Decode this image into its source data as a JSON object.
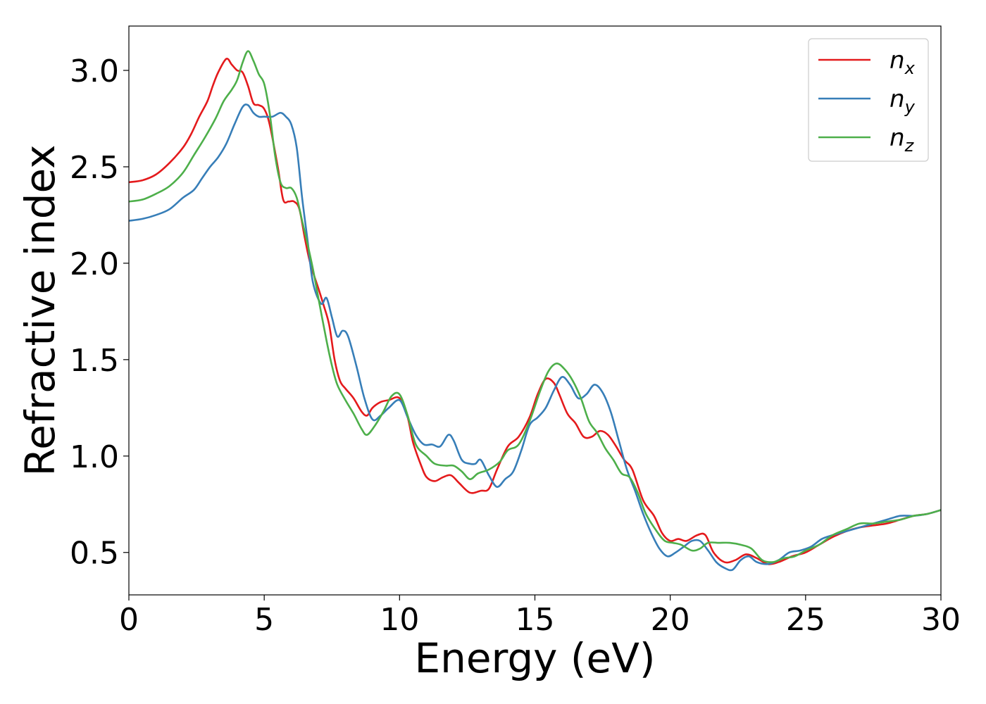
{
  "chart_data": {
    "type": "line",
    "title": "",
    "xlabel": "Energy (eV)",
    "ylabel": "Refractive index",
    "xlim": [
      0,
      30
    ],
    "ylim": [
      0.28,
      3.23
    ],
    "xticks": [
      0,
      5,
      10,
      15,
      20,
      25,
      30
    ],
    "yticks": [
      0.5,
      1.0,
      1.5,
      2.0,
      2.5,
      3.0
    ],
    "grid": false,
    "legend_position": "top-right",
    "series": [
      {
        "name": "n",
        "subscript": "x",
        "color": "#e41a1c",
        "points": [
          [
            0,
            2.42
          ],
          [
            0.5,
            2.43
          ],
          [
            1,
            2.46
          ],
          [
            1.5,
            2.52
          ],
          [
            2,
            2.6
          ],
          [
            2.3,
            2.67
          ],
          [
            2.6,
            2.76
          ],
          [
            2.9,
            2.84
          ],
          [
            3.1,
            2.92
          ],
          [
            3.3,
            2.99
          ],
          [
            3.6,
            3.06
          ],
          [
            3.8,
            3.03
          ],
          [
            4,
            3.0
          ],
          [
            4.2,
            2.99
          ],
          [
            4.4,
            2.92
          ],
          [
            4.6,
            2.83
          ],
          [
            4.8,
            2.82
          ],
          [
            5,
            2.8
          ],
          [
            5.2,
            2.72
          ],
          [
            5.5,
            2.5
          ],
          [
            5.7,
            2.33
          ],
          [
            5.9,
            2.32
          ],
          [
            6.1,
            2.32
          ],
          [
            6.3,
            2.28
          ],
          [
            6.5,
            2.13
          ],
          [
            6.7,
            2.0
          ],
          [
            7,
            1.87
          ],
          [
            7.2,
            1.78
          ],
          [
            7.4,
            1.68
          ],
          [
            7.6,
            1.5
          ],
          [
            7.8,
            1.39
          ],
          [
            8,
            1.35
          ],
          [
            8.3,
            1.3
          ],
          [
            8.6,
            1.23
          ],
          [
            8.8,
            1.21
          ],
          [
            9,
            1.25
          ],
          [
            9.3,
            1.28
          ],
          [
            9.6,
            1.29
          ],
          [
            10,
            1.3
          ],
          [
            10.3,
            1.2
          ],
          [
            10.5,
            1.07
          ],
          [
            10.8,
            0.95
          ],
          [
            11,
            0.89
          ],
          [
            11.3,
            0.87
          ],
          [
            11.6,
            0.89
          ],
          [
            11.9,
            0.9
          ],
          [
            12.2,
            0.86
          ],
          [
            12.6,
            0.81
          ],
          [
            13,
            0.82
          ],
          [
            13.3,
            0.83
          ],
          [
            13.6,
            0.93
          ],
          [
            14,
            1.05
          ],
          [
            14.4,
            1.1
          ],
          [
            14.8,
            1.2
          ],
          [
            15.1,
            1.32
          ],
          [
            15.4,
            1.4
          ],
          [
            15.7,
            1.38
          ],
          [
            15.9,
            1.32
          ],
          [
            16.2,
            1.22
          ],
          [
            16.5,
            1.17
          ],
          [
            16.8,
            1.1
          ],
          [
            17.1,
            1.1
          ],
          [
            17.4,
            1.13
          ],
          [
            17.7,
            1.11
          ],
          [
            18,
            1.05
          ],
          [
            18.3,
            0.98
          ],
          [
            18.6,
            0.93
          ],
          [
            19,
            0.77
          ],
          [
            19.4,
            0.69
          ],
          [
            19.7,
            0.6
          ],
          [
            20,
            0.56
          ],
          [
            20.3,
            0.57
          ],
          [
            20.6,
            0.56
          ],
          [
            21,
            0.59
          ],
          [
            21.3,
            0.59
          ],
          [
            21.6,
            0.5
          ],
          [
            22,
            0.45
          ],
          [
            22.4,
            0.46
          ],
          [
            22.8,
            0.49
          ],
          [
            23.2,
            0.47
          ],
          [
            23.6,
            0.44
          ],
          [
            24,
            0.45
          ],
          [
            24.5,
            0.48
          ],
          [
            25,
            0.5
          ],
          [
            25.5,
            0.54
          ],
          [
            26,
            0.58
          ],
          [
            26.5,
            0.61
          ],
          [
            27,
            0.63
          ],
          [
            27.5,
            0.64
          ],
          [
            28,
            0.65
          ],
          [
            28.5,
            0.67
          ],
          [
            29,
            0.69
          ],
          [
            29.5,
            0.7
          ],
          [
            30,
            0.72
          ]
        ]
      },
      {
        "name": "n",
        "subscript": "y",
        "color": "#377eb8",
        "points": [
          [
            0,
            2.22
          ],
          [
            0.5,
            2.23
          ],
          [
            1,
            2.25
          ],
          [
            1.5,
            2.28
          ],
          [
            2,
            2.34
          ],
          [
            2.4,
            2.38
          ],
          [
            2.7,
            2.44
          ],
          [
            3,
            2.5
          ],
          [
            3.3,
            2.55
          ],
          [
            3.6,
            2.62
          ],
          [
            3.9,
            2.72
          ],
          [
            4.2,
            2.81
          ],
          [
            4.4,
            2.82
          ],
          [
            4.6,
            2.78
          ],
          [
            4.8,
            2.76
          ],
          [
            5,
            2.76
          ],
          [
            5.3,
            2.76
          ],
          [
            5.6,
            2.78
          ],
          [
            5.8,
            2.76
          ],
          [
            6,
            2.72
          ],
          [
            6.2,
            2.6
          ],
          [
            6.4,
            2.34
          ],
          [
            6.6,
            2.12
          ],
          [
            6.8,
            1.9
          ],
          [
            7.1,
            1.79
          ],
          [
            7.3,
            1.82
          ],
          [
            7.5,
            1.72
          ],
          [
            7.7,
            1.62
          ],
          [
            7.9,
            1.65
          ],
          [
            8.1,
            1.62
          ],
          [
            8.4,
            1.47
          ],
          [
            8.7,
            1.3
          ],
          [
            9,
            1.19
          ],
          [
            9.3,
            1.21
          ],
          [
            9.6,
            1.25
          ],
          [
            10,
            1.29
          ],
          [
            10.3,
            1.2
          ],
          [
            10.6,
            1.11
          ],
          [
            10.9,
            1.06
          ],
          [
            11.2,
            1.06
          ],
          [
            11.5,
            1.05
          ],
          [
            11.8,
            1.11
          ],
          [
            12,
            1.08
          ],
          [
            12.3,
            0.98
          ],
          [
            12.6,
            0.96
          ],
          [
            12.8,
            0.96
          ],
          [
            13,
            0.98
          ],
          [
            13.3,
            0.9
          ],
          [
            13.6,
            0.84
          ],
          [
            13.9,
            0.88
          ],
          [
            14.2,
            0.92
          ],
          [
            14.5,
            1.03
          ],
          [
            14.8,
            1.16
          ],
          [
            15.1,
            1.2
          ],
          [
            15.4,
            1.25
          ],
          [
            15.7,
            1.34
          ],
          [
            16,
            1.41
          ],
          [
            16.3,
            1.37
          ],
          [
            16.6,
            1.3
          ],
          [
            16.9,
            1.32
          ],
          [
            17.2,
            1.37
          ],
          [
            17.5,
            1.33
          ],
          [
            17.8,
            1.23
          ],
          [
            18.1,
            1.08
          ],
          [
            18.4,
            0.93
          ],
          [
            18.7,
            0.82
          ],
          [
            19,
            0.7
          ],
          [
            19.3,
            0.6
          ],
          [
            19.6,
            0.52
          ],
          [
            19.9,
            0.48
          ],
          [
            20.2,
            0.5
          ],
          [
            20.5,
            0.53
          ],
          [
            20.8,
            0.56
          ],
          [
            21.1,
            0.56
          ],
          [
            21.4,
            0.51
          ],
          [
            21.7,
            0.45
          ],
          [
            22,
            0.42
          ],
          [
            22.3,
            0.41
          ],
          [
            22.6,
            0.46
          ],
          [
            22.9,
            0.48
          ],
          [
            23.2,
            0.45
          ],
          [
            23.6,
            0.44
          ],
          [
            24,
            0.46
          ],
          [
            24.4,
            0.5
          ],
          [
            24.8,
            0.51
          ],
          [
            25.2,
            0.53
          ],
          [
            25.6,
            0.57
          ],
          [
            26,
            0.59
          ],
          [
            26.5,
            0.61
          ],
          [
            27,
            0.63
          ],
          [
            27.5,
            0.65
          ],
          [
            28,
            0.67
          ],
          [
            28.5,
            0.69
          ],
          [
            29,
            0.69
          ],
          [
            29.5,
            0.7
          ],
          [
            30,
            0.72
          ]
        ]
      },
      {
        "name": "n",
        "subscript": "z",
        "color": "#4daf4a",
        "points": [
          [
            0,
            2.32
          ],
          [
            0.5,
            2.33
          ],
          [
            1,
            2.36
          ],
          [
            1.5,
            2.4
          ],
          [
            2,
            2.47
          ],
          [
            2.4,
            2.56
          ],
          [
            2.8,
            2.65
          ],
          [
            3.2,
            2.75
          ],
          [
            3.5,
            2.84
          ],
          [
            3.8,
            2.9
          ],
          [
            4,
            2.95
          ],
          [
            4.2,
            3.04
          ],
          [
            4.4,
            3.1
          ],
          [
            4.6,
            3.05
          ],
          [
            4.8,
            2.98
          ],
          [
            5,
            2.93
          ],
          [
            5.2,
            2.78
          ],
          [
            5.4,
            2.56
          ],
          [
            5.6,
            2.42
          ],
          [
            5.8,
            2.39
          ],
          [
            6,
            2.39
          ],
          [
            6.2,
            2.34
          ],
          [
            6.4,
            2.22
          ],
          [
            6.6,
            2.1
          ],
          [
            6.8,
            1.97
          ],
          [
            7,
            1.82
          ],
          [
            7.3,
            1.6
          ],
          [
            7.5,
            1.47
          ],
          [
            7.7,
            1.37
          ],
          [
            8,
            1.29
          ],
          [
            8.3,
            1.22
          ],
          [
            8.6,
            1.14
          ],
          [
            8.8,
            1.11
          ],
          [
            9.1,
            1.16
          ],
          [
            9.4,
            1.23
          ],
          [
            9.7,
            1.31
          ],
          [
            10,
            1.32
          ],
          [
            10.3,
            1.21
          ],
          [
            10.6,
            1.06
          ],
          [
            11,
            1.0
          ],
          [
            11.3,
            0.96
          ],
          [
            11.7,
            0.95
          ],
          [
            12,
            0.95
          ],
          [
            12.3,
            0.92
          ],
          [
            12.6,
            0.88
          ],
          [
            12.9,
            0.91
          ],
          [
            13.3,
            0.93
          ],
          [
            13.7,
            0.97
          ],
          [
            14,
            1.03
          ],
          [
            14.4,
            1.06
          ],
          [
            14.8,
            1.18
          ],
          [
            15.2,
            1.34
          ],
          [
            15.5,
            1.44
          ],
          [
            15.8,
            1.48
          ],
          [
            16.1,
            1.45
          ],
          [
            16.4,
            1.39
          ],
          [
            16.7,
            1.3
          ],
          [
            17,
            1.18
          ],
          [
            17.3,
            1.12
          ],
          [
            17.6,
            1.04
          ],
          [
            17.9,
            0.98
          ],
          [
            18.2,
            0.91
          ],
          [
            18.5,
            0.89
          ],
          [
            18.8,
            0.81
          ],
          [
            19.1,
            0.7
          ],
          [
            19.5,
            0.61
          ],
          [
            19.8,
            0.56
          ],
          [
            20.1,
            0.55
          ],
          [
            20.4,
            0.54
          ],
          [
            20.8,
            0.51
          ],
          [
            21.1,
            0.52
          ],
          [
            21.4,
            0.55
          ],
          [
            21.8,
            0.55
          ],
          [
            22.2,
            0.55
          ],
          [
            22.6,
            0.54
          ],
          [
            23,
            0.52
          ],
          [
            23.4,
            0.46
          ],
          [
            23.8,
            0.45
          ],
          [
            24.2,
            0.47
          ],
          [
            24.6,
            0.48
          ],
          [
            25,
            0.51
          ],
          [
            25.5,
            0.54
          ],
          [
            26,
            0.59
          ],
          [
            26.5,
            0.62
          ],
          [
            27,
            0.65
          ],
          [
            27.5,
            0.65
          ],
          [
            28,
            0.66
          ],
          [
            28.5,
            0.67
          ],
          [
            29,
            0.69
          ],
          [
            29.5,
            0.7
          ],
          [
            30,
            0.72
          ]
        ]
      }
    ]
  }
}
